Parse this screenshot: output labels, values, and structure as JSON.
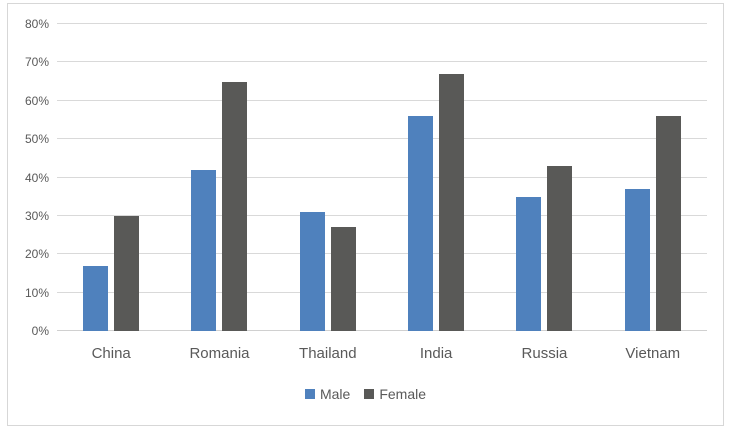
{
  "chart_data": {
    "type": "bar",
    "title": "",
    "categories": [
      "China",
      "Romania",
      "Thailand",
      "India",
      "Russia",
      "Vietnam"
    ],
    "series": [
      {
        "name": "Male",
        "color": "#4f81bd",
        "values": [
          17,
          42,
          31,
          56,
          35,
          37
        ]
      },
      {
        "name": "Female",
        "color": "#595957",
        "values": [
          30,
          65,
          27,
          67,
          43,
          56
        ]
      }
    ],
    "xlabel": "",
    "ylabel": "",
    "ylim": [
      0,
      80
    ],
    "ytick_step": 10,
    "ytick_labels": [
      "0%",
      "10%",
      "20%",
      "30%",
      "40%",
      "50%",
      "60%",
      "70%",
      "80%"
    ],
    "grid": true,
    "legend_position": "bottom"
  },
  "colors": {
    "male_bar": "#4f81bd",
    "female_bar": "#595957",
    "gridline": "#d9d9d9",
    "axis_line": "#d0d0d0",
    "axis_text": "#595959",
    "frame_border": "#d7d7d7",
    "background": "#ffffff"
  }
}
